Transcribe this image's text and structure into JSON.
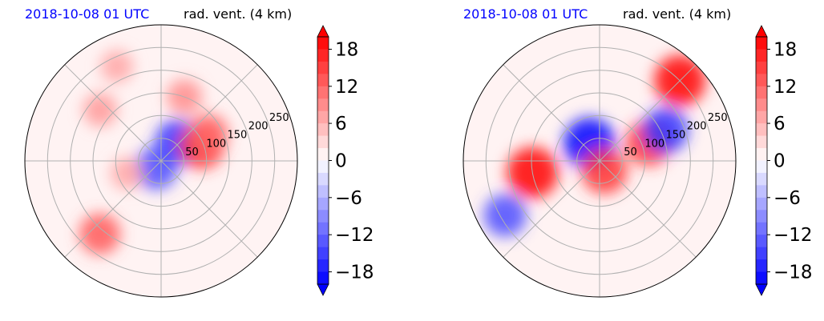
{
  "colors": {
    "date_title": "#0000ff",
    "positive_max": "#ff0000",
    "negative_max": "#0000ff",
    "neutral": "#ffffff",
    "grid": "#b0b0b0"
  },
  "chart_data": [
    {
      "type": "heatmap",
      "projection": "polar",
      "date_label": "2018-10-08 01 UTC",
      "variable_label": "rad. vent. (4 km)",
      "radial_ticks": [
        "50",
        "100",
        "150",
        "200",
        "250"
      ],
      "radial_tick_values": [
        50,
        100,
        150,
        200,
        250
      ],
      "r_max": 300,
      "angular_grid_deg": [
        0,
        45,
        90,
        135,
        180,
        225,
        270,
        315
      ],
      "grid": true,
      "colorbar": {
        "ticks": [
          "18",
          "12",
          "6",
          "0",
          "−6",
          "−12",
          "−18"
        ],
        "tick_values": [
          18,
          12,
          6,
          0,
          -6,
          -12,
          -18
        ],
        "range": [
          -20,
          20
        ],
        "extend": "both",
        "levels": 20,
        "colormap": "bwr"
      },
      "features": [
        {
          "theta": 48,
          "r": 55,
          "value": -16
        },
        {
          "theta": 235,
          "r": 20,
          "value": -14
        },
        {
          "theta": 20,
          "r": 95,
          "value": 16
        },
        {
          "theta": 30,
          "r": 120,
          "value": 12
        },
        {
          "theta": 70,
          "r": 150,
          "value": 9
        },
        {
          "theta": 140,
          "r": 175,
          "value": 8
        },
        {
          "theta": 230,
          "r": 210,
          "value": 13
        },
        {
          "theta": 115,
          "r": 230,
          "value": 7
        },
        {
          "theta": 200,
          "r": 80,
          "value": 7
        }
      ]
    },
    {
      "type": "heatmap",
      "projection": "polar",
      "date_label": "2018-10-08 01 UTC",
      "variable_label": "rad. vent. (4 km)",
      "radial_ticks": [
        "50",
        "100",
        "150",
        "200",
        "250"
      ],
      "radial_tick_values": [
        50,
        100,
        150,
        200,
        250
      ],
      "r_max": 300,
      "angular_grid_deg": [
        0,
        45,
        90,
        135,
        180,
        225,
        270,
        315
      ],
      "grid": true,
      "colorbar": {
        "ticks": [
          "18",
          "12",
          "6",
          "0",
          "−6",
          "−12",
          "−18"
        ],
        "tick_values": [
          18,
          12,
          6,
          0,
          -6,
          -12,
          -18
        ],
        "range": [
          -20,
          20
        ],
        "extend": "both",
        "levels": 20,
        "colormap": "bwr"
      },
      "features": [
        {
          "theta": 190,
          "r": 150,
          "value": 20
        },
        {
          "theta": 120,
          "r": 45,
          "value": -20
        },
        {
          "theta": 45,
          "r": 250,
          "value": 20
        },
        {
          "theta": 20,
          "r": 115,
          "value": 16
        },
        {
          "theta": 295,
          "r": 25,
          "value": 16
        },
        {
          "theta": 25,
          "r": 160,
          "value": -16
        },
        {
          "theta": 210,
          "r": 240,
          "value": -14
        }
      ]
    }
  ]
}
